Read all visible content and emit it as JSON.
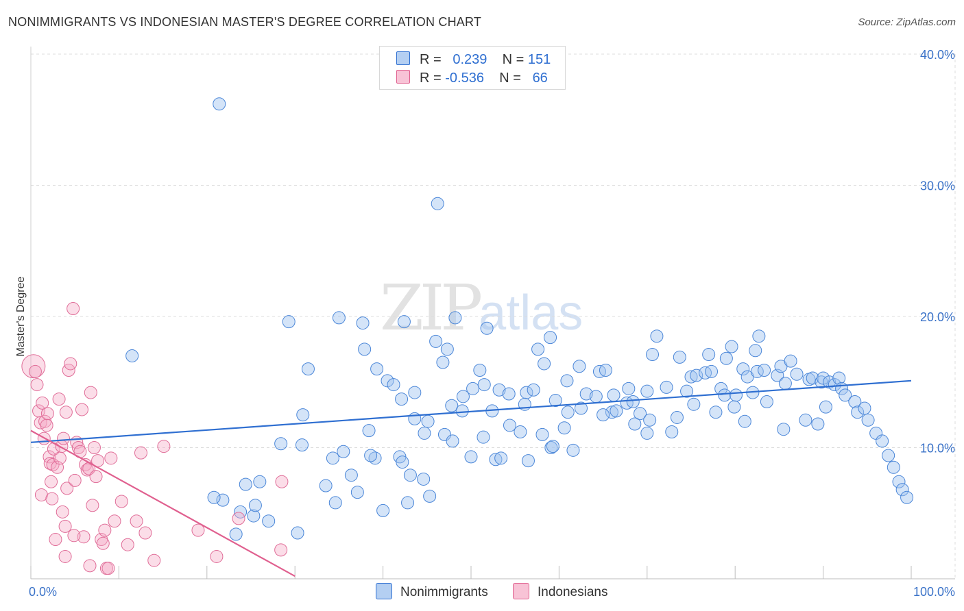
{
  "title": "NONIMMIGRANTS VS INDONESIAN MASTER'S DEGREE CORRELATION CHART",
  "source": "Source: ZipAtlas.com",
  "watermark": {
    "zip": "ZIP",
    "atlas": "atlas"
  },
  "colors": {
    "blue": "#2f6fd1",
    "blue_fill": "#aac8f0",
    "pink": "#e0608f",
    "pink_fill": "#f5b6cc",
    "grid": "#dddddd"
  },
  "legend": {
    "rows": [
      {
        "r_label": "R =",
        "r_value": "0.239",
        "n_label": "N =",
        "n_value": "151"
      },
      {
        "r_label": "R =",
        "r_value": "-0.536",
        "n_label": "N =",
        "n_value": "66"
      }
    ]
  },
  "bottom_legend": {
    "series1": "Nonimmigrants",
    "series2": "Indonesians"
  },
  "chart_data": {
    "type": "scatter",
    "title": "NONIMMIGRANTS VS INDONESIAN MASTER'S DEGREE CORRELATION CHART",
    "xlabel": "",
    "ylabel": "Master's Degree",
    "xlim": [
      0,
      100
    ],
    "ylim": [
      0,
      40
    ],
    "x_tick_labels": [
      "0.0%",
      "100.0%"
    ],
    "y_ticks": [
      10,
      20,
      30,
      40
    ],
    "y_tick_labels": [
      "10.0%",
      "20.0%",
      "30.0%",
      "40.0%"
    ],
    "grid": true,
    "series": [
      {
        "name": "Nonimmigrants",
        "color": "#2f6fd1",
        "r": 0.239,
        "n": 151,
        "trend": {
          "x": [
            0,
            100
          ],
          "y": [
            10.4,
            15.1
          ]
        },
        "points": [
          [
            21.4,
            36.2
          ],
          [
            46.2,
            28.6
          ],
          [
            11.5,
            17.0
          ],
          [
            29.3,
            19.6
          ],
          [
            35.0,
            19.9
          ],
          [
            37.7,
            19.5
          ],
          [
            42.4,
            19.6
          ],
          [
            48.2,
            19.9
          ],
          [
            51.8,
            19.1
          ],
          [
            31.5,
            16.0
          ],
          [
            37.9,
            17.5
          ],
          [
            39.3,
            16.0
          ],
          [
            46.0,
            18.1
          ],
          [
            46.8,
            16.5
          ],
          [
            47.3,
            17.5
          ],
          [
            59.0,
            18.4
          ],
          [
            71.1,
            18.5
          ],
          [
            79.6,
            17.7
          ],
          [
            82.7,
            18.5
          ],
          [
            40.5,
            15.1
          ],
          [
            41.2,
            14.8
          ],
          [
            42.1,
            13.7
          ],
          [
            43.6,
            14.2
          ],
          [
            45.1,
            12.0
          ],
          [
            47.8,
            13.2
          ],
          [
            49.1,
            13.9
          ],
          [
            50.2,
            14.5
          ],
          [
            51.0,
            15.9
          ],
          [
            51.5,
            14.8
          ],
          [
            52.4,
            12.8
          ],
          [
            53.2,
            14.4
          ],
          [
            54.3,
            14.1
          ],
          [
            56.3,
            14.2
          ],
          [
            57.1,
            14.4
          ],
          [
            57.6,
            17.5
          ],
          [
            58.3,
            16.4
          ],
          [
            59.6,
            13.6
          ],
          [
            60.9,
            15.1
          ],
          [
            62.3,
            16.2
          ],
          [
            63.1,
            14.1
          ],
          [
            64.6,
            15.8
          ],
          [
            65.3,
            15.9
          ],
          [
            66.0,
            12.7
          ],
          [
            67.7,
            13.4
          ],
          [
            67.9,
            14.5
          ],
          [
            69.2,
            12.6
          ],
          [
            70.0,
            14.3
          ],
          [
            70.6,
            17.1
          ],
          [
            72.2,
            14.6
          ],
          [
            73.7,
            16.9
          ],
          [
            74.5,
            14.3
          ],
          [
            75.0,
            15.4
          ],
          [
            75.6,
            15.5
          ],
          [
            76.6,
            15.7
          ],
          [
            77.0,
            17.1
          ],
          [
            77.3,
            15.8
          ],
          [
            78.4,
            14.5
          ],
          [
            78.8,
            14.0
          ],
          [
            79.0,
            16.8
          ],
          [
            80.1,
            14.0
          ],
          [
            80.9,
            16.0
          ],
          [
            81.4,
            15.4
          ],
          [
            82.0,
            14.2
          ],
          [
            82.3,
            17.4
          ],
          [
            82.5,
            15.8
          ],
          [
            83.3,
            15.9
          ],
          [
            84.8,
            15.5
          ],
          [
            85.2,
            16.2
          ],
          [
            85.7,
            14.9
          ],
          [
            86.3,
            16.6
          ],
          [
            87.0,
            15.6
          ],
          [
            88.4,
            15.2
          ],
          [
            88.8,
            15.3
          ],
          [
            89.8,
            15.0
          ],
          [
            90.0,
            15.3
          ],
          [
            90.7,
            15.0
          ],
          [
            91.3,
            14.8
          ],
          [
            91.8,
            15.3
          ],
          [
            92.1,
            14.5
          ],
          [
            92.5,
            14.0
          ],
          [
            93.6,
            13.5
          ],
          [
            93.9,
            12.7
          ],
          [
            94.7,
            13.0
          ],
          [
            95.1,
            12.1
          ],
          [
            96.0,
            11.1
          ],
          [
            96.7,
            10.5
          ],
          [
            97.4,
            9.4
          ],
          [
            98.0,
            8.5
          ],
          [
            98.6,
            7.4
          ],
          [
            99.0,
            6.8
          ],
          [
            99.5,
            6.2
          ],
          [
            30.9,
            12.5
          ],
          [
            34.3,
            9.2
          ],
          [
            36.4,
            7.9
          ],
          [
            37.1,
            6.6
          ],
          [
            38.4,
            11.3
          ],
          [
            39.1,
            9.2
          ],
          [
            40.0,
            5.2
          ],
          [
            43.1,
            7.9
          ],
          [
            43.6,
            12.2
          ],
          [
            44.7,
            11.1
          ],
          [
            45.3,
            6.3
          ],
          [
            47.0,
            11.0
          ],
          [
            49.0,
            12.8
          ],
          [
            51.4,
            10.8
          ],
          [
            52.8,
            9.1
          ],
          [
            53.4,
            9.2
          ],
          [
            55.6,
            11.2
          ],
          [
            56.1,
            13.3
          ],
          [
            58.1,
            11.0
          ],
          [
            59.1,
            10.0
          ],
          [
            60.6,
            11.5
          ],
          [
            61.0,
            12.7
          ],
          [
            62.5,
            13.0
          ],
          [
            65.0,
            12.5
          ],
          [
            66.5,
            12.8
          ],
          [
            68.6,
            11.8
          ],
          [
            70.0,
            11.1
          ],
          [
            72.8,
            11.2
          ],
          [
            26.0,
            7.4
          ],
          [
            27.0,
            4.4
          ],
          [
            25.3,
            4.8
          ],
          [
            21.8,
            6.0
          ],
          [
            24.4,
            7.2
          ],
          [
            23.8,
            5.1
          ],
          [
            20.8,
            6.2
          ],
          [
            23.3,
            3.4
          ],
          [
            30.3,
            3.5
          ],
          [
            25.5,
            5.6
          ],
          [
            28.4,
            10.3
          ],
          [
            30.8,
            10.2
          ],
          [
            33.5,
            7.1
          ],
          [
            34.6,
            5.8
          ],
          [
            35.5,
            9.7
          ],
          [
            38.6,
            9.4
          ],
          [
            41.9,
            9.3
          ],
          [
            42.2,
            8.9
          ],
          [
            42.8,
            5.8
          ],
          [
            44.6,
            7.6
          ],
          [
            47.9,
            10.5
          ],
          [
            50.0,
            9.3
          ],
          [
            54.4,
            11.7
          ],
          [
            56.5,
            9.0
          ],
          [
            59.3,
            10.1
          ],
          [
            61.6,
            9.8
          ],
          [
            64.2,
            13.9
          ],
          [
            66.2,
            14.0
          ],
          [
            68.4,
            13.5
          ],
          [
            70.3,
            12.1
          ],
          [
            73.4,
            12.3
          ],
          [
            75.3,
            13.3
          ],
          [
            77.8,
            12.7
          ],
          [
            79.9,
            13.1
          ],
          [
            81.1,
            12.0
          ],
          [
            83.6,
            13.5
          ],
          [
            85.5,
            11.4
          ],
          [
            88.0,
            12.1
          ],
          [
            89.4,
            11.8
          ],
          [
            90.3,
            13.1
          ]
        ]
      },
      {
        "name": "Indonesians",
        "color": "#e0608f",
        "r": -0.536,
        "n": 66,
        "trend": {
          "x": [
            0,
            30.0
          ],
          "y": [
            11.3,
            0.2
          ]
        },
        "points": [
          [
            0.3,
            16.2
          ],
          [
            0.5,
            15.8
          ],
          [
            0.7,
            14.8
          ],
          [
            0.9,
            12.8
          ],
          [
            1.1,
            11.9
          ],
          [
            1.3,
            13.4
          ],
          [
            1.5,
            10.7
          ],
          [
            1.6,
            12.0
          ],
          [
            1.8,
            11.7
          ],
          [
            1.9,
            12.6
          ],
          [
            2.1,
            9.3
          ],
          [
            2.2,
            8.8
          ],
          [
            2.3,
            7.4
          ],
          [
            2.5,
            8.7
          ],
          [
            2.6,
            9.9
          ],
          [
            2.8,
            3.0
          ],
          [
            3.0,
            8.5
          ],
          [
            3.2,
            13.7
          ],
          [
            3.3,
            9.2
          ],
          [
            3.5,
            10.1
          ],
          [
            3.7,
            10.7
          ],
          [
            3.9,
            1.7
          ],
          [
            4.0,
            12.7
          ],
          [
            4.1,
            6.9
          ],
          [
            4.3,
            15.9
          ],
          [
            4.5,
            16.4
          ],
          [
            4.8,
            20.6
          ],
          [
            5.0,
            7.5
          ],
          [
            5.2,
            10.4
          ],
          [
            5.4,
            10.0
          ],
          [
            5.6,
            9.7
          ],
          [
            5.8,
            12.9
          ],
          [
            6.0,
            3.2
          ],
          [
            6.2,
            8.7
          ],
          [
            6.4,
            8.3
          ],
          [
            6.6,
            8.4
          ],
          [
            6.8,
            14.2
          ],
          [
            7.0,
            5.6
          ],
          [
            7.2,
            10.0
          ],
          [
            7.4,
            7.8
          ],
          [
            7.6,
            9.0
          ],
          [
            8.0,
            3.0
          ],
          [
            8.2,
            2.7
          ],
          [
            8.4,
            3.7
          ],
          [
            8.6,
            0.8
          ],
          [
            8.8,
            0.8
          ],
          [
            9.1,
            9.2
          ],
          [
            10.3,
            5.9
          ],
          [
            12.0,
            4.4
          ],
          [
            12.5,
            9.6
          ],
          [
            14.0,
            1.4
          ],
          [
            15.1,
            10.1
          ],
          [
            19.0,
            3.7
          ],
          [
            21.1,
            1.7
          ],
          [
            23.6,
            4.6
          ],
          [
            28.5,
            7.4
          ],
          [
            28.4,
            2.2
          ],
          [
            3.9,
            4.0
          ],
          [
            4.9,
            3.3
          ],
          [
            6.7,
            1.0
          ],
          [
            1.2,
            6.4
          ],
          [
            2.4,
            6.1
          ],
          [
            3.6,
            5.1
          ],
          [
            9.5,
            4.4
          ],
          [
            11.0,
            2.6
          ],
          [
            13.0,
            3.5
          ]
        ]
      }
    ]
  }
}
